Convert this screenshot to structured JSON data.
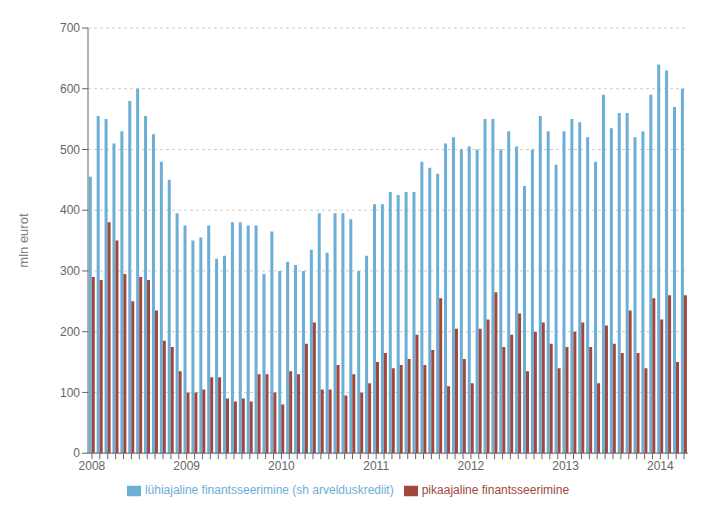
{
  "chart_data": {
    "type": "bar",
    "ylabel": "mln eurot",
    "categories": [
      "2008",
      null,
      null,
      null,
      null,
      null,
      null,
      null,
      null,
      null,
      null,
      null,
      "2009",
      null,
      null,
      null,
      null,
      null,
      null,
      null,
      null,
      null,
      null,
      null,
      "2010",
      null,
      null,
      null,
      null,
      null,
      null,
      null,
      null,
      null,
      null,
      null,
      "2011",
      null,
      null,
      null,
      null,
      null,
      null,
      null,
      null,
      null,
      null,
      null,
      "2012",
      null,
      null,
      null,
      null,
      null,
      null,
      null,
      null,
      null,
      null,
      null,
      "2013",
      null,
      null,
      null,
      null,
      null,
      null,
      null,
      null,
      null,
      null,
      null,
      "2014",
      null,
      null,
      null
    ],
    "series": [
      {
        "name": "lühiajaline finantsseerimine (sh arvelduskrediit)",
        "color": "#6baed6",
        "values": [
          455,
          555,
          550,
          510,
          530,
          580,
          600,
          555,
          525,
          480,
          450,
          395,
          375,
          350,
          355,
          375,
          320,
          325,
          380,
          380,
          375,
          375,
          295,
          365,
          300,
          315,
          310,
          300,
          335,
          395,
          330,
          395,
          395,
          385,
          300,
          325,
          410,
          410,
          430,
          425,
          430,
          430,
          480,
          470,
          460,
          510,
          520,
          500,
          505,
          500,
          550,
          550,
          500,
          530,
          505,
          440,
          500,
          555,
          530,
          475,
          530,
          550,
          545,
          520,
          480,
          590,
          535,
          560,
          560,
          520,
          530,
          590,
          640,
          630,
          570,
          600
        ]
      },
      {
        "name": "pikaajaline finantsseerimine",
        "color": "#a0473e",
        "values": [
          290,
          285,
          380,
          350,
          295,
          250,
          290,
          285,
          235,
          185,
          175,
          135,
          100,
          100,
          105,
          125,
          125,
          90,
          85,
          90,
          85,
          130,
          130,
          100,
          80,
          135,
          130,
          180,
          215,
          105,
          105,
          145,
          95,
          130,
          100,
          115,
          150,
          165,
          140,
          145,
          155,
          195,
          145,
          170,
          255,
          110,
          205,
          155,
          115,
          205,
          220,
          265,
          175,
          195,
          230,
          135,
          200,
          215,
          180,
          140,
          175,
          200,
          215,
          175,
          115,
          210,
          180,
          165,
          235,
          165,
          140,
          255,
          220,
          260,
          150,
          260
        ]
      }
    ],
    "ylim": [
      0,
      700
    ],
    "yticks": [
      0,
      100,
      200,
      300,
      400,
      500,
      600,
      700
    ],
    "grid": true,
    "legend": "bottom"
  }
}
